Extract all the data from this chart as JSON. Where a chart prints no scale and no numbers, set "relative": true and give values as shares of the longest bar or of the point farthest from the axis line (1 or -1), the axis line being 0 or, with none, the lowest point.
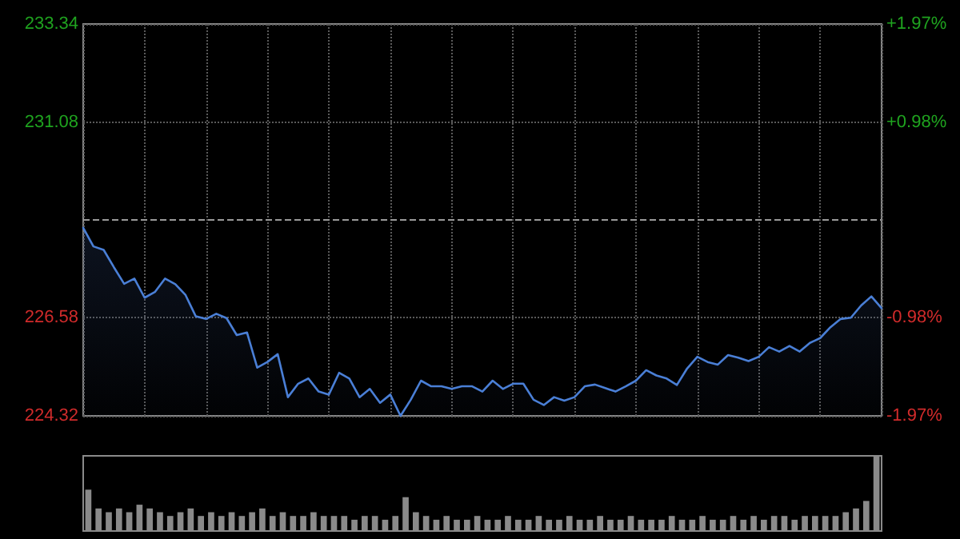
{
  "chart_data": [
    {
      "type": "area",
      "categories": [
        null,
        null,
        null,
        null,
        null,
        null,
        null,
        null,
        null,
        null,
        null,
        null,
        null,
        null,
        null,
        null,
        null,
        null,
        null,
        null,
        null,
        null,
        null,
        null,
        null,
        null,
        null,
        null,
        null,
        null,
        null,
        null,
        null,
        null,
        null,
        null,
        null,
        null,
        null,
        null,
        null,
        null,
        null,
        null,
        null,
        null,
        null,
        null,
        null,
        null,
        null,
        null,
        null,
        null,
        null,
        null,
        null,
        null,
        null,
        null,
        null,
        null,
        null,
        null,
        null,
        null,
        null,
        null,
        null,
        null,
        null,
        null,
        null,
        null,
        null,
        null,
        null,
        null,
        null
      ],
      "series": [
        {
          "color": "#4a7fd6",
          "values": [
            228.65,
            228.22,
            228.14,
            227.74,
            227.36,
            227.48,
            227.04,
            227.17,
            227.48,
            227.35,
            227.1,
            226.61,
            226.55,
            226.67,
            226.57,
            226.18,
            226.24,
            225.43,
            225.56,
            225.74,
            224.75,
            225.06,
            225.18,
            224.88,
            224.81,
            225.31,
            225.18,
            224.75,
            224.94,
            224.62,
            224.81,
            224.32,
            224.69,
            225.13,
            225.0,
            225.0,
            224.94,
            225.0,
            225.0,
            224.88,
            225.13,
            224.94,
            225.06,
            225.06,
            224.69,
            224.57,
            224.75,
            224.67,
            224.75,
            225.0,
            225.04,
            224.96,
            224.88,
            225.0,
            225.13,
            225.37,
            225.25,
            225.18,
            225.03,
            225.41,
            225.68,
            225.56,
            225.5,
            225.72,
            225.66,
            225.58,
            225.68,
            225.9,
            225.8,
            225.93,
            225.8,
            226.0,
            226.11,
            226.36,
            226.55,
            226.58,
            226.86,
            227.07,
            226.8
          ]
        }
      ],
      "ylim": [
        224.32,
        233.34
      ],
      "yticks": [
        224.32,
        226.58,
        231.08,
        233.34
      ],
      "y2lim": [
        -1.97,
        1.97
      ],
      "y2ticks": [
        {
          "value": -1.97,
          "label": "-1.97%"
        },
        {
          "value": -0.98,
          "label": "-0.98%"
        },
        {
          "value": 0.98,
          "label": "+0.98%"
        },
        {
          "value": 1.97,
          "label": "+1.97%"
        }
      ],
      "ref_lines": [
        {
          "axis": "y",
          "value": 228.83,
          "color": "#9a9a9a",
          "line_style": "dashed"
        }
      ],
      "grid": true,
      "marker": "none",
      "line_style": "solid"
    },
    {
      "type": "bar",
      "relative": true,
      "categories": [
        null,
        null,
        null,
        null,
        null,
        null,
        null,
        null,
        null,
        null,
        null,
        null,
        null,
        null,
        null,
        null,
        null,
        null,
        null,
        null,
        null,
        null,
        null,
        null,
        null,
        null,
        null,
        null,
        null,
        null,
        null,
        null,
        null,
        null,
        null,
        null,
        null,
        null,
        null,
        null,
        null,
        null,
        null,
        null,
        null,
        null,
        null,
        null,
        null,
        null,
        null,
        null,
        null,
        null,
        null,
        null,
        null,
        null,
        null,
        null,
        null,
        null,
        null,
        null,
        null,
        null,
        null,
        null,
        null,
        null,
        null,
        null,
        null,
        null,
        null,
        null,
        null,
        null
      ],
      "series": [
        {
          "color": "#8a8a8a",
          "values": [
            0.55,
            0.3,
            0.25,
            0.3,
            0.25,
            0.35,
            0.3,
            0.25,
            0.2,
            0.25,
            0.3,
            0.2,
            0.25,
            0.2,
            0.25,
            0.2,
            0.25,
            0.3,
            0.2,
            0.25,
            0.2,
            0.2,
            0.25,
            0.2,
            0.2,
            0.2,
            0.15,
            0.2,
            0.2,
            0.15,
            0.2,
            0.45,
            0.25,
            0.2,
            0.15,
            0.2,
            0.15,
            0.15,
            0.2,
            0.15,
            0.15,
            0.2,
            0.15,
            0.15,
            0.2,
            0.15,
            0.15,
            0.2,
            0.15,
            0.15,
            0.2,
            0.15,
            0.15,
            0.2,
            0.15,
            0.15,
            0.15,
            0.2,
            0.15,
            0.15,
            0.2,
            0.15,
            0.15,
            0.2,
            0.15,
            0.2,
            0.15,
            0.2,
            0.2,
            0.15,
            0.2,
            0.2,
            0.2,
            0.2,
            0.25,
            0.3,
            0.4,
            1.0
          ]
        }
      ]
    }
  ]
}
